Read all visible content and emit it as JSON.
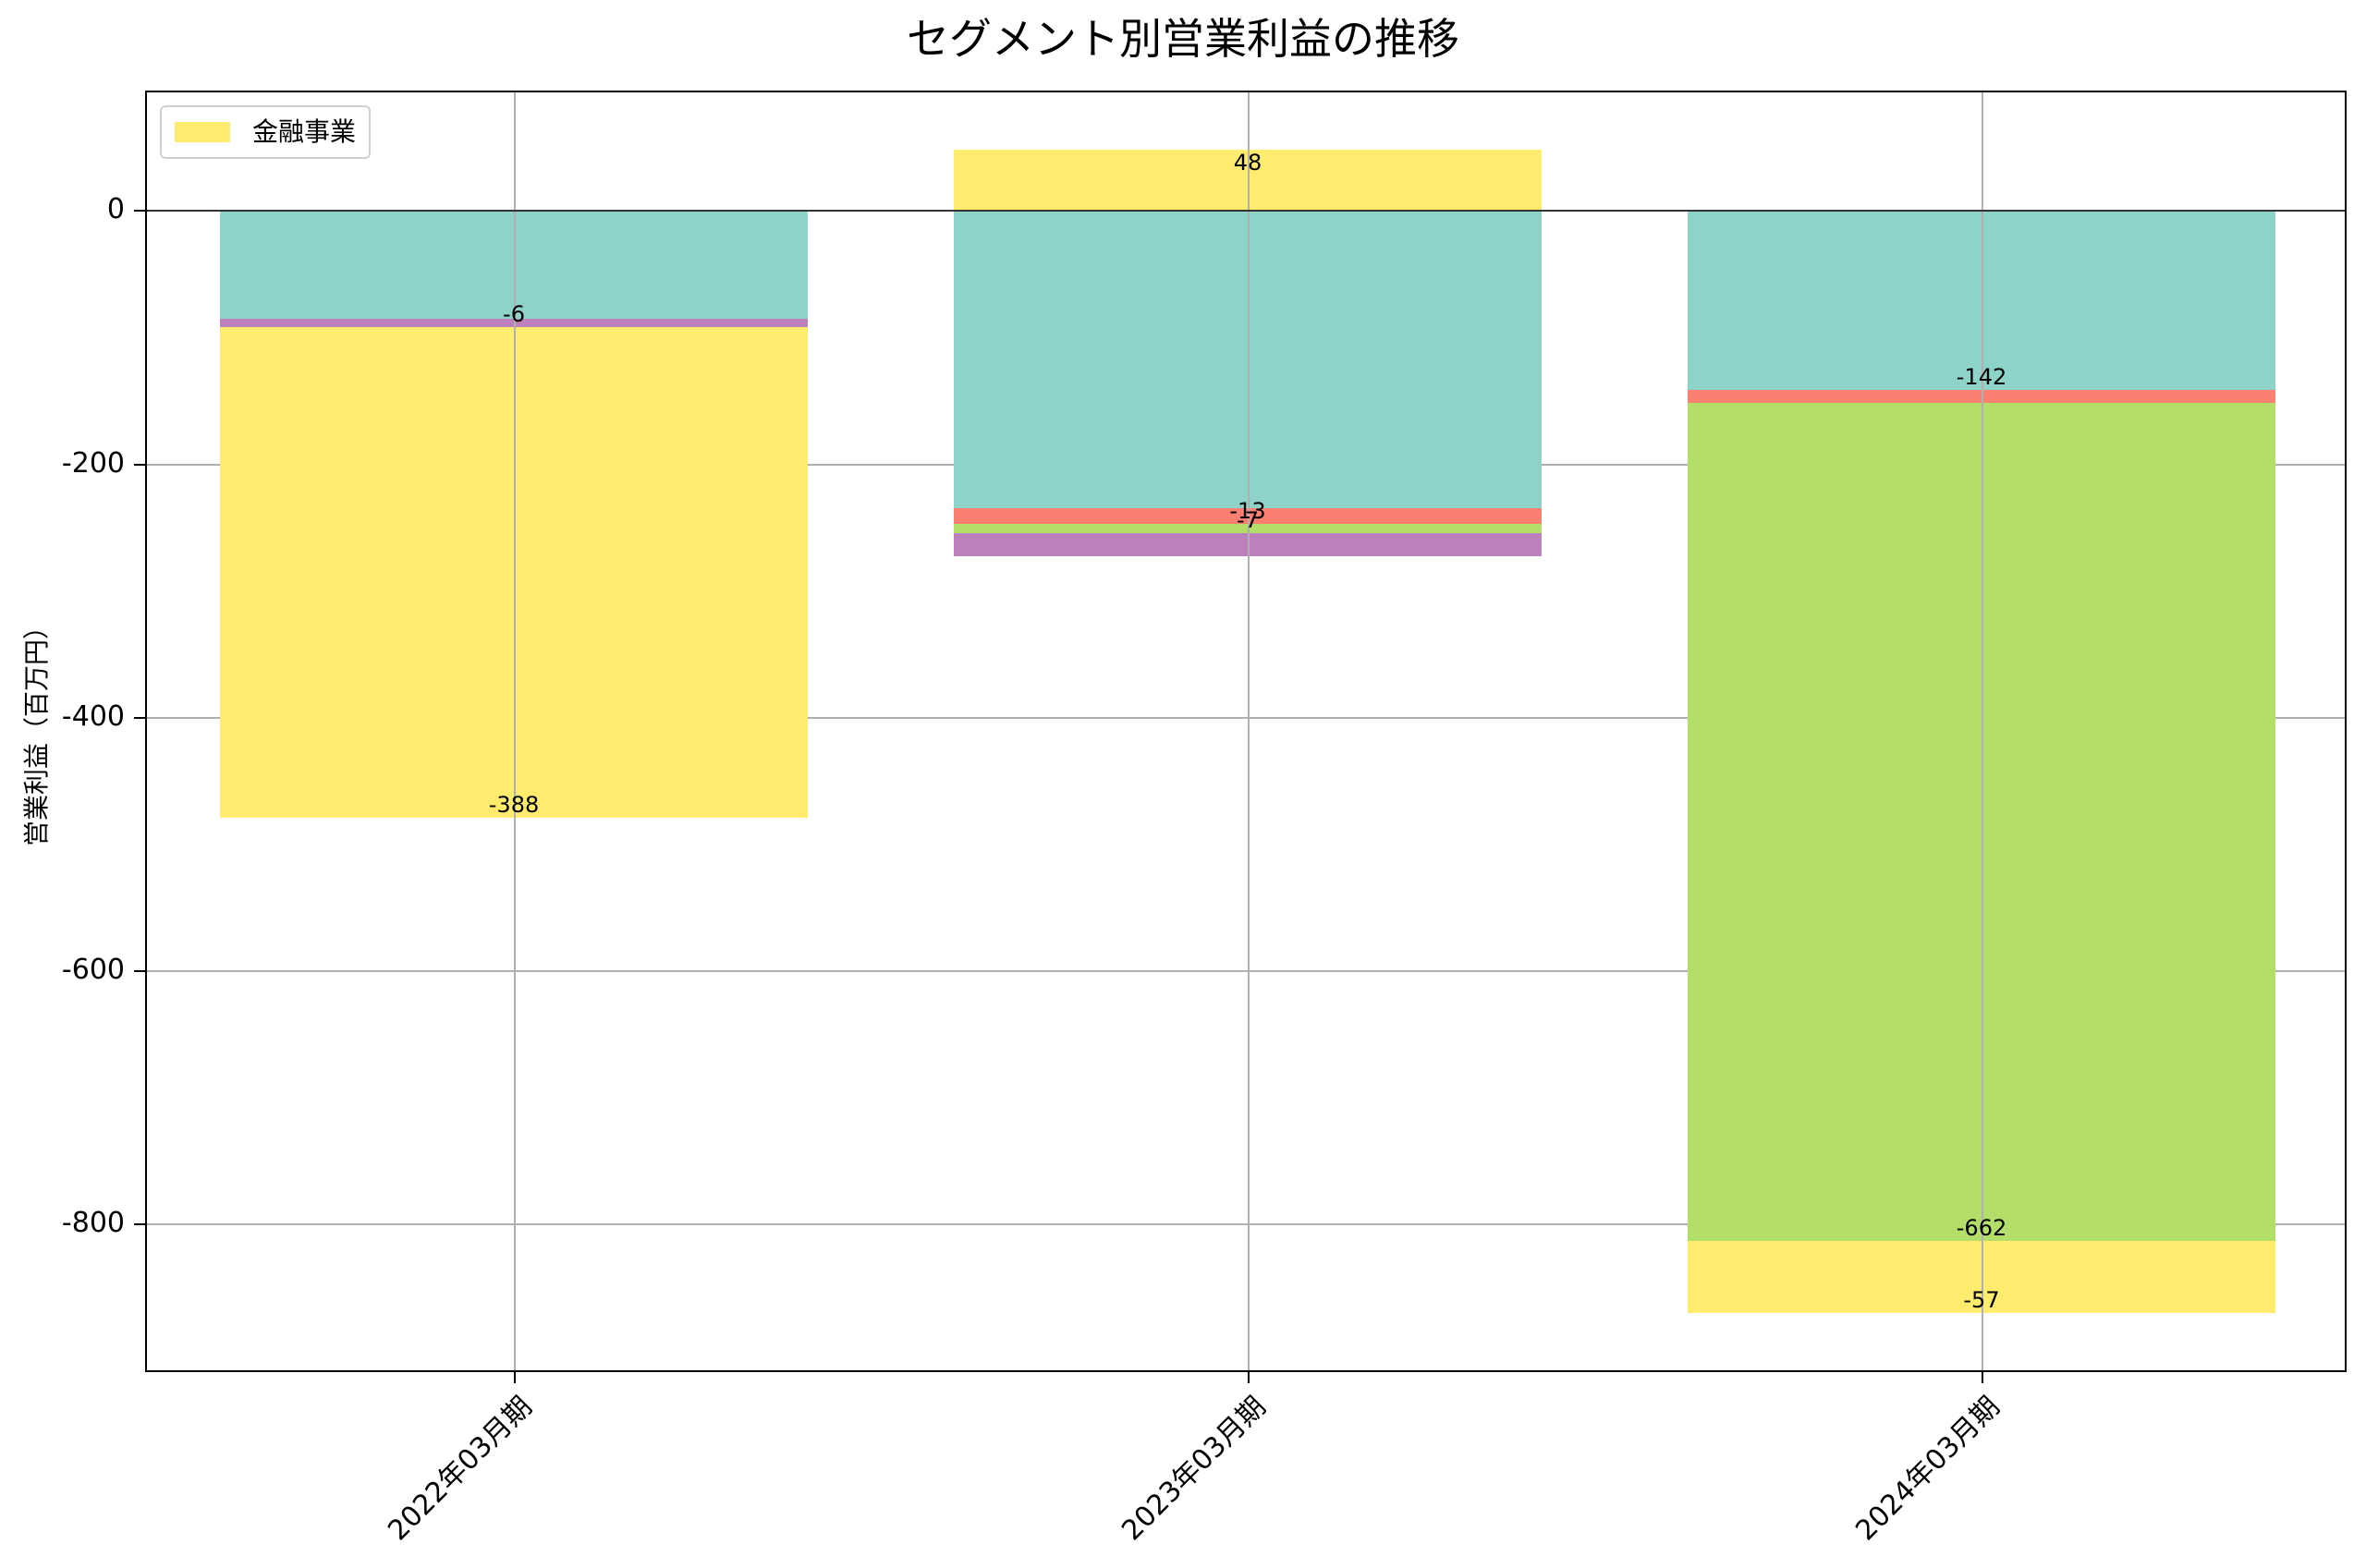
{
  "chart_data": {
    "type": "bar",
    "stacked": true,
    "title": "セグメント別営業利益の推移",
    "xlabel": "",
    "ylabel": "営業利益（百万円）",
    "categories": [
      "2022年03月期",
      "2023年03月期",
      "2024年03月期"
    ],
    "ylim": [
      -919,
      93
    ],
    "yticks": [
      0,
      -200,
      -400,
      -600,
      -800
    ],
    "ytick_labels": [
      "0",
      "-200",
      "-400",
      "-600",
      "-800"
    ],
    "grid": true,
    "legend": {
      "position": "upper left",
      "entries": [
        {
          "label": "金融事業",
          "color": "#ffeb6e"
        }
      ]
    },
    "series": [
      {
        "name": "teal segment (unlabeled in legend)",
        "color": "#8dd3c7",
        "values": [
          -86,
          -235,
          -142
        ],
        "labels": [
          "",
          "",
          "-142"
        ]
      },
      {
        "name": "red segment (unlabeled in legend)",
        "color": "#fb8072",
        "values": [
          0,
          -13,
          -10
        ],
        "labels": [
          "",
          "-13",
          ""
        ]
      },
      {
        "name": "green segment (unlabeled in legend)",
        "color": "#b3de69",
        "values": [
          0,
          -7,
          -662
        ],
        "labels": [
          "",
          "-7",
          "-662"
        ]
      },
      {
        "name": "purple segment (unlabeled in legend)",
        "color": "#bc80bd",
        "values": [
          -6,
          -18,
          0
        ],
        "labels": [
          "-6",
          "",
          ""
        ]
      },
      {
        "name": "金融事業",
        "color": "#ffeb6e",
        "values": [
          -388,
          48,
          -57
        ],
        "labels": [
          "-388",
          "48",
          "-57"
        ]
      }
    ],
    "stack_segments": [
      [
        {
          "series": "teal",
          "color": "#8dd3c7",
          "from": 0,
          "to": -86,
          "label": ""
        },
        {
          "series": "purple",
          "color": "#bc80bd",
          "from": -86,
          "to": -92,
          "label": "-6"
        },
        {
          "series": "金融事業",
          "color": "#ffeb6e",
          "from": -92,
          "to": -480,
          "label": "-388"
        }
      ],
      [
        {
          "series": "金融事業",
          "color": "#ffeb6e",
          "from": 0,
          "to": 48,
          "label": "48"
        },
        {
          "series": "teal",
          "color": "#8dd3c7",
          "from": 0,
          "to": -235,
          "label": ""
        },
        {
          "series": "red",
          "color": "#fb8072",
          "from": -235,
          "to": -248,
          "label": "-13"
        },
        {
          "series": "green",
          "color": "#b3de69",
          "from": -248,
          "to": -255,
          "label": "-7"
        },
        {
          "series": "purple",
          "color": "#bc80bd",
          "from": -255,
          "to": -273,
          "label": ""
        }
      ],
      [
        {
          "series": "teal",
          "color": "#8dd3c7",
          "from": 0,
          "to": -142,
          "label": "-142"
        },
        {
          "series": "red",
          "color": "#fb8072",
          "from": -142,
          "to": -152,
          "label": ""
        },
        {
          "series": "green",
          "color": "#b3de69",
          "from": -152,
          "to": -814,
          "label": "-662"
        },
        {
          "series": "金融事業",
          "color": "#ffeb6e",
          "from": -814,
          "to": -871,
          "label": "-57"
        }
      ]
    ]
  }
}
